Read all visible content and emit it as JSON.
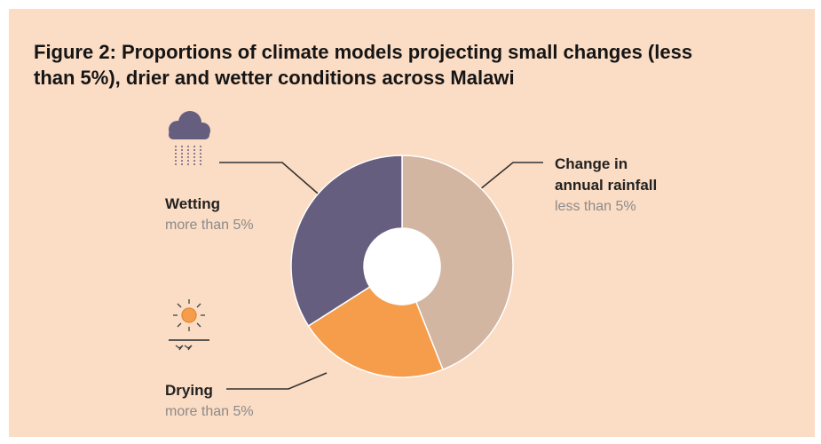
{
  "chart_data": {
    "type": "pie",
    "title": "Figure 2: Proportions of climate models projecting small changes (less than 5%), drier and wetter conditions across Malawi",
    "categories": [
      "Change in annual rainfall",
      "Drying",
      "Wetting"
    ],
    "sublabels": [
      "less than 5%",
      "more than 5%",
      "more than 5%"
    ],
    "values": [
      44,
      22,
      34
    ],
    "colors": [
      "#d3b6a2",
      "#f59d4a",
      "#655e7e"
    ],
    "donut": true
  }
}
